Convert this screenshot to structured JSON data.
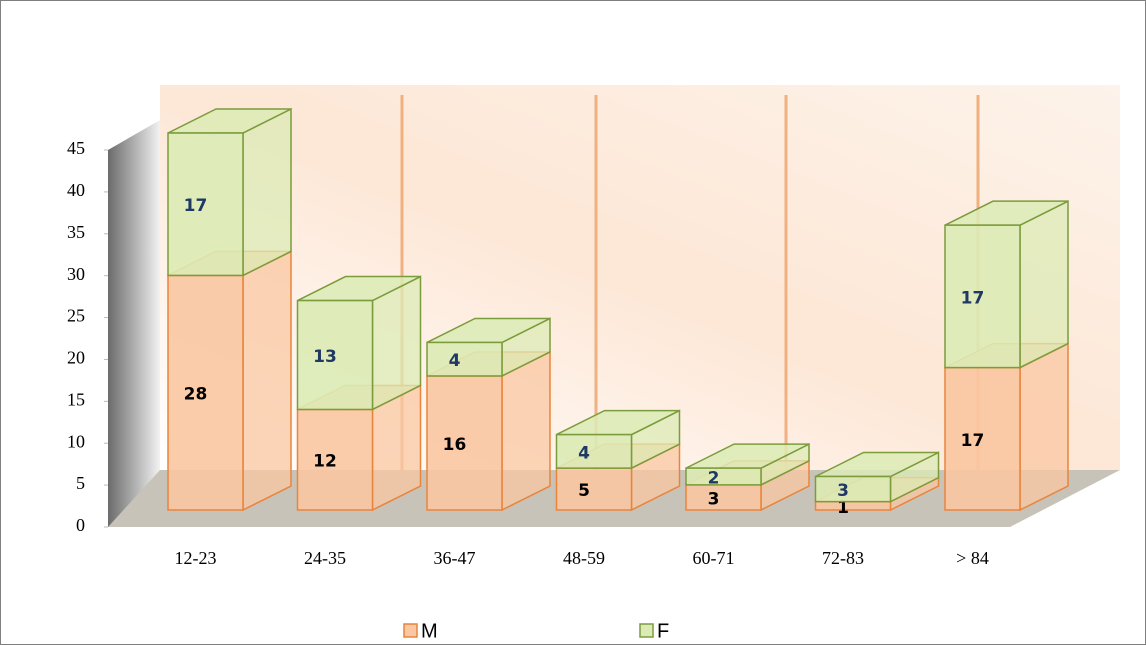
{
  "chart_data": {
    "type": "bar3d_stacked",
    "categories": [
      "12-23",
      "24-35",
      "36-47",
      "48-59",
      "60-71",
      "72-83",
      "> 84"
    ],
    "series": [
      {
        "name": "M",
        "color": "#f9c7a1",
        "stroke": "#e9843c",
        "label_color": "#000000",
        "values": [
          28,
          12,
          16,
          5,
          3,
          1,
          17
        ]
      },
      {
        "name": "F",
        "color": "#dcebb5",
        "stroke": "#7b9c3c",
        "label_color": "#1f3864",
        "values": [
          17,
          13,
          4,
          4,
          2,
          3,
          17
        ]
      }
    ],
    "ylim": [
      0,
      45
    ],
    "yticks": [
      0,
      5,
      10,
      15,
      20,
      25,
      30,
      35,
      40,
      45
    ]
  }
}
